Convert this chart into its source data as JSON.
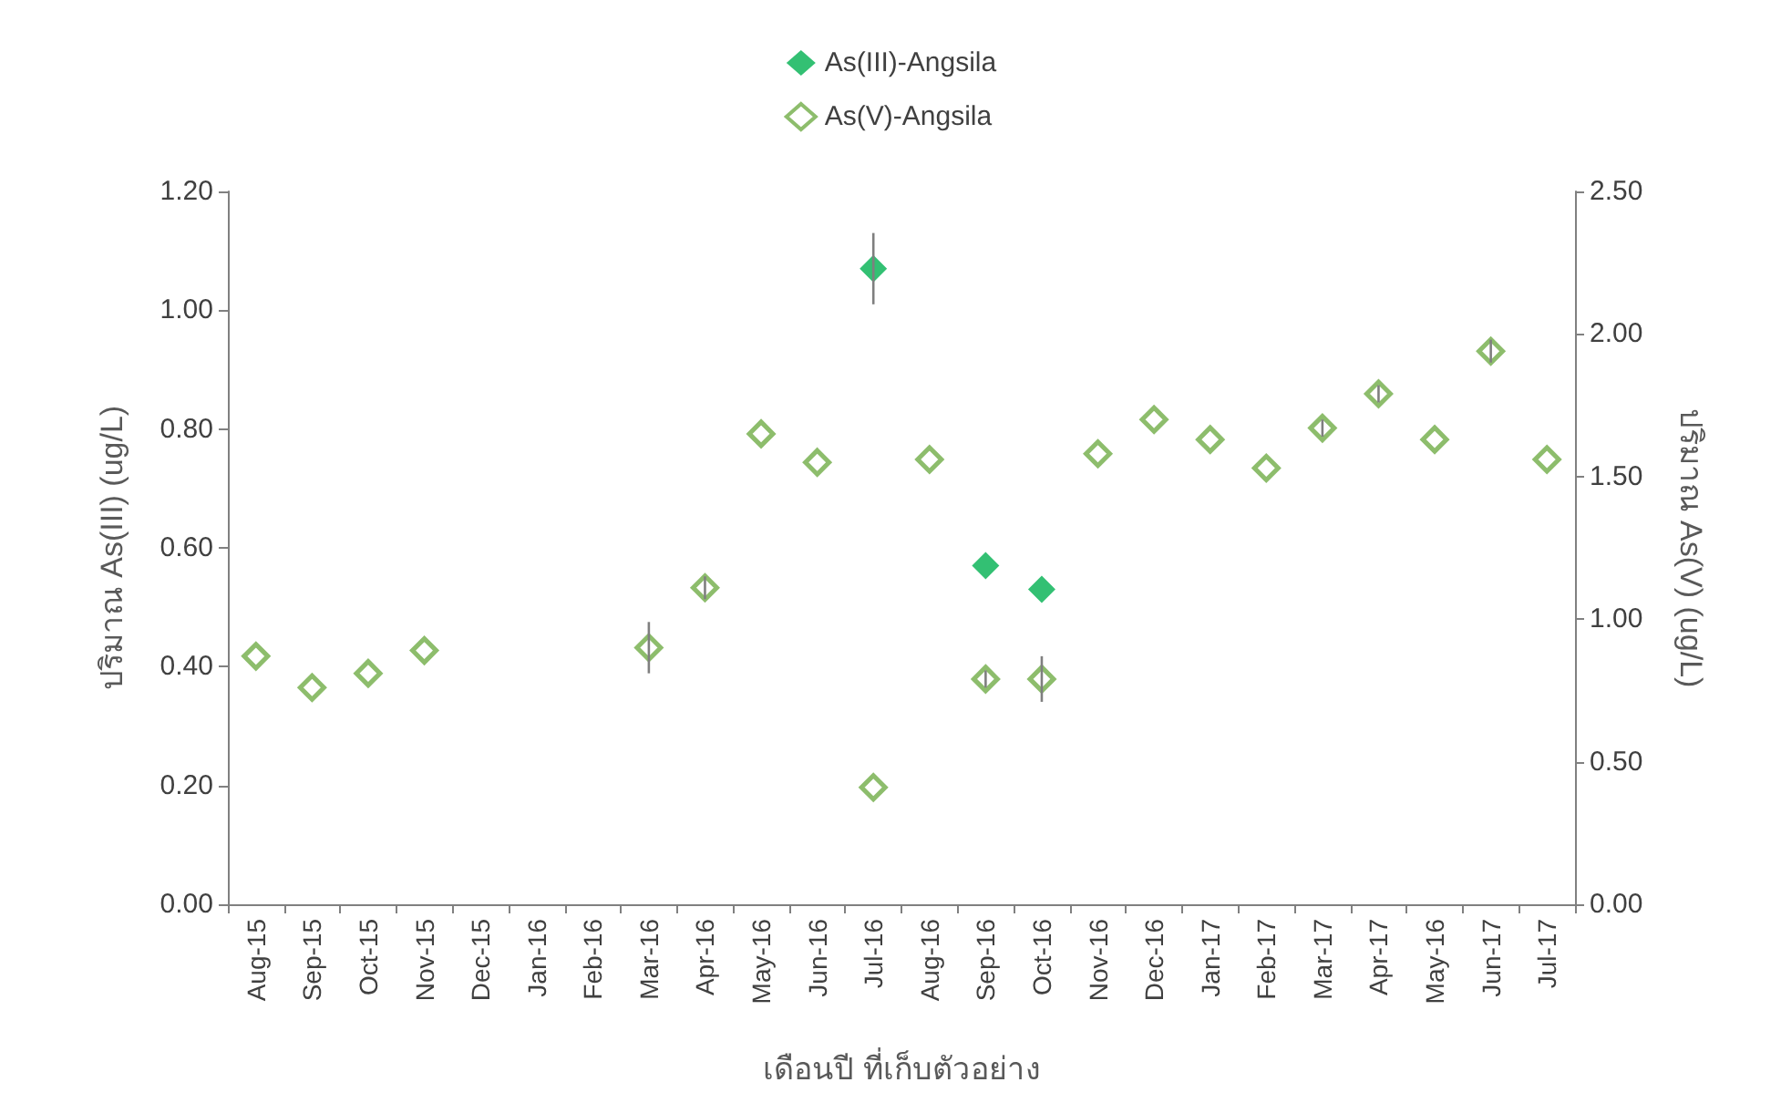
{
  "chart_data": {
    "type": "scatter",
    "xlabel": "เดือนปี ที่เก็บตัวอย่าง",
    "ylabel": "ปริมาณ As(III) (ug/L)",
    "y2label": "ปริมาณ As(V) (ug/L)",
    "categories": [
      "Aug-15",
      "Sep-15",
      "Oct-15",
      "Nov-15",
      "Dec-15",
      "Jan-16",
      "Feb-16",
      "Mar-16",
      "Apr-16",
      "May-16",
      "Jun-16",
      "Jul-16",
      "Aug-16",
      "Sep-16",
      "Oct-16",
      "Nov-16",
      "Dec-16",
      "Jan-17",
      "Feb-17",
      "Mar-17",
      "Apr-17",
      "May-16",
      "Jun-17",
      "Jul-17"
    ],
    "series": [
      {
        "name": "As(III)-Angsila",
        "color": "#00b050",
        "marker": "diamond",
        "values": [
          null,
          null,
          null,
          null,
          null,
          null,
          null,
          null,
          null,
          null,
          null,
          1.07,
          null,
          0.57,
          0.53,
          null,
          null,
          null,
          null,
          null,
          null,
          null,
          null,
          null
        ],
        "errors": [
          null,
          null,
          null,
          null,
          null,
          null,
          null,
          null,
          null,
          null,
          null,
          0.06,
          null,
          null,
          null,
          null,
          null,
          null,
          null,
          null,
          null,
          null,
          null,
          null
        ]
      },
      {
        "name": "As(V)-Angsila",
        "color": "#70ad47",
        "marker": "diamond",
        "axis": "y2",
        "values": [
          0.87,
          0.76,
          0.81,
          0.89,
          null,
          null,
          null,
          0.9,
          1.11,
          1.65,
          1.55,
          0.41,
          1.56,
          0.79,
          0.79,
          1.58,
          1.7,
          1.63,
          1.53,
          1.67,
          1.79,
          1.63,
          1.94,
          1.56
        ],
        "errors": [
          null,
          null,
          null,
          null,
          null,
          null,
          null,
          0.09,
          0.04,
          null,
          null,
          null,
          null,
          0.03,
          0.08,
          null,
          null,
          null,
          null,
          0.03,
          0.03,
          null,
          0.04,
          null
        ]
      }
    ],
    "ylim": [
      0,
      1.2
    ],
    "yticks": [
      {
        "value": 0,
        "label": "0.00"
      },
      {
        "value": 0.2,
        "label": "0.20"
      },
      {
        "value": 0.4,
        "label": "0.40"
      },
      {
        "value": 0.6,
        "label": "0.60"
      },
      {
        "value": 0.8,
        "label": "0.80"
      },
      {
        "value": 1,
        "label": "1.00"
      },
      {
        "value": 1.2,
        "label": "1.20"
      }
    ],
    "y2lim": [
      0,
      2.5
    ],
    "y2ticks": [
      {
        "value": 0,
        "label": "0.00"
      },
      {
        "value": 0.5,
        "label": "0.50"
      },
      {
        "value": 1,
        "label": "1.00"
      },
      {
        "value": 1.5,
        "label": "1.50"
      },
      {
        "value": 2,
        "label": "2.00"
      },
      {
        "value": 2.5,
        "label": "2.50"
      }
    ],
    "grid": false,
    "legend": "top"
  }
}
